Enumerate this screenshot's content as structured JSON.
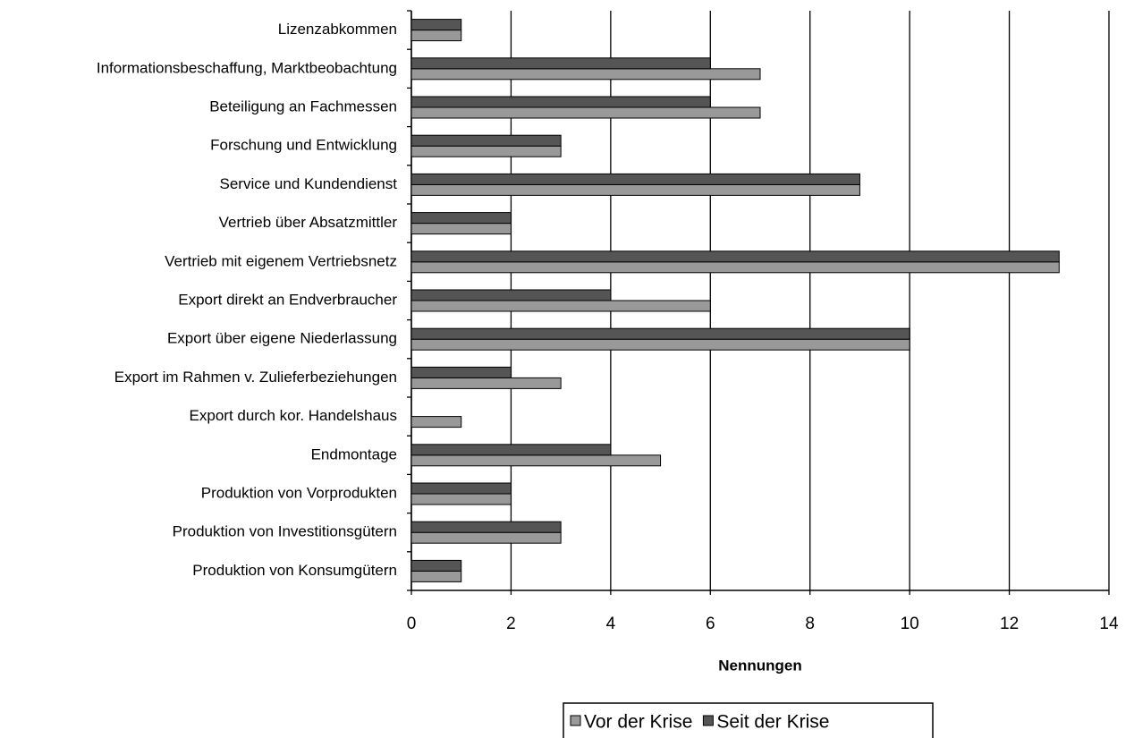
{
  "chart_data": {
    "type": "hbar",
    "categories": [
      "Lizenzabkommen",
      "Informationsbeschaffung, Marktbeobachtung",
      "Beteiligung an Fachmessen",
      "Forschung und Entwicklung",
      "Service und Kundendienst",
      "Vertrieb über Absatzmittler",
      "Vertrieb mit eigenem Vertriebsnetz",
      "Export direkt an Endverbraucher",
      "Export über eigene Niederlassung",
      "Export im Rahmen v. Zulieferbeziehungen",
      "Export durch kor. Handelshaus",
      "Endmontage",
      "Produktion von Vorprodukten",
      "Produktion von Investitionsgütern",
      "Produktion von Konsumgütern"
    ],
    "series": [
      {
        "name": "Vor der Krise",
        "color": "#999999",
        "values": [
          1,
          7,
          7,
          3,
          9,
          2,
          13,
          6,
          10,
          3,
          1,
          5,
          2,
          3,
          1
        ]
      },
      {
        "name": "Seit der Krise",
        "color": "#555555",
        "values": [
          1,
          6,
          6,
          3,
          9,
          2,
          13,
          4,
          10,
          2,
          0,
          4,
          2,
          3,
          1
        ]
      }
    ],
    "x_label": "Nennungen",
    "xlim": [
      0,
      14
    ],
    "xticks": [
      0,
      2,
      4,
      6,
      8,
      10,
      12,
      14
    ],
    "grid": true,
    "legend": "bottom"
  }
}
